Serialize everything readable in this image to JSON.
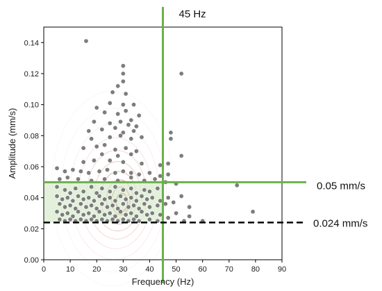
{
  "chart_data": {
    "type": "scatter",
    "title": "",
    "xlabel": "Frequency (Hz)",
    "ylabel": "Amplitude (mm/s)",
    "xlim": [
      0,
      90
    ],
    "ylim": [
      0,
      0.15
    ],
    "x_ticks": [
      "0",
      "10",
      "20",
      "30",
      "40",
      "50",
      "60",
      "70",
      "80",
      "90"
    ],
    "y_ticks": [
      "0.00",
      "0.02",
      "0.04",
      "0.06",
      "0.08",
      "0.10",
      "0.12",
      "0.14"
    ],
    "x_tick_values": [
      0,
      10,
      20,
      30,
      40,
      50,
      60,
      70,
      80,
      90
    ],
    "y_tick_values": [
      0,
      0.02,
      0.04,
      0.06,
      0.08,
      0.1,
      0.12,
      0.14
    ],
    "grid": false,
    "colors": {
      "points": "#7d7d7d",
      "point_edge": "#ffffff",
      "threshold": "#6ab04c",
      "region": "#d9ecd0",
      "lower_limit": "#000000",
      "density": "#c0392b"
    },
    "density_center": {
      "x": 29.5,
      "y": 0.037
    },
    "shaded_region": {
      "x": [
        0,
        45
      ],
      "y": [
        0.024,
        0.05
      ]
    },
    "reference_lines": [
      {
        "orientation": "vertical",
        "value": 45,
        "style": "solid",
        "label": "45 Hz"
      },
      {
        "orientation": "horizontal",
        "value": 0.05,
        "style": "solid",
        "label": "0.05 mm/s"
      },
      {
        "orientation": "horizontal",
        "value": 0.024,
        "style": "dashed",
        "label": "0.024 mm/s"
      }
    ],
    "points": [
      [
        16,
        0.141
      ],
      [
        52,
        0.12
      ],
      [
        30,
        0.12
      ],
      [
        30,
        0.125
      ],
      [
        30,
        0.115
      ],
      [
        28,
        0.112
      ],
      [
        26,
        0.108
      ],
      [
        31,
        0.107
      ],
      [
        34,
        0.1
      ],
      [
        20,
        0.098
      ],
      [
        25,
        0.101
      ],
      [
        30,
        0.1
      ],
      [
        36,
        0.093
      ],
      [
        23,
        0.095
      ],
      [
        28,
        0.094
      ],
      [
        31,
        0.096
      ],
      [
        33,
        0.09
      ],
      [
        19,
        0.089
      ],
      [
        25,
        0.088
      ],
      [
        29,
        0.089
      ],
      [
        32,
        0.087
      ],
      [
        35,
        0.086
      ],
      [
        48,
        0.082
      ],
      [
        17,
        0.083
      ],
      [
        22,
        0.084
      ],
      [
        27,
        0.085
      ],
      [
        30,
        0.082
      ],
      [
        34,
        0.083
      ],
      [
        18,
        0.078
      ],
      [
        25,
        0.079
      ],
      [
        29,
        0.08
      ],
      [
        33,
        0.078
      ],
      [
        37,
        0.079
      ],
      [
        48,
        0.078
      ],
      [
        15,
        0.072
      ],
      [
        20,
        0.073
      ],
      [
        23,
        0.074
      ],
      [
        27,
        0.071
      ],
      [
        31,
        0.072
      ],
      [
        35,
        0.07
      ],
      [
        22,
        0.068
      ],
      [
        28,
        0.067
      ],
      [
        33,
        0.068
      ],
      [
        52,
        0.067
      ],
      [
        15,
        0.063
      ],
      [
        19,
        0.064
      ],
      [
        25,
        0.064
      ],
      [
        30,
        0.063
      ],
      [
        37,
        0.062
      ],
      [
        44,
        0.061
      ],
      [
        47,
        0.062
      ],
      [
        5,
        0.059
      ],
      [
        8,
        0.057
      ],
      [
        11,
        0.058
      ],
      [
        14,
        0.057
      ],
      [
        17,
        0.056
      ],
      [
        21,
        0.057
      ],
      [
        24,
        0.058
      ],
      [
        27,
        0.056
      ],
      [
        30,
        0.057
      ],
      [
        33,
        0.056
      ],
      [
        36,
        0.055
      ],
      [
        40,
        0.056
      ],
      [
        44,
        0.054
      ],
      [
        47,
        0.055
      ],
      [
        6,
        0.052
      ],
      [
        9,
        0.053
      ],
      [
        13,
        0.052
      ],
      [
        18,
        0.051
      ],
      [
        23,
        0.052
      ],
      [
        28,
        0.051
      ],
      [
        33,
        0.053
      ],
      [
        38,
        0.051
      ],
      [
        42,
        0.052
      ],
      [
        46,
        0.05
      ],
      [
        50,
        0.049
      ],
      [
        73,
        0.048
      ],
      [
        5,
        0.047
      ],
      [
        8,
        0.045
      ],
      [
        10,
        0.043
      ],
      [
        12,
        0.046
      ],
      [
        15,
        0.044
      ],
      [
        18,
        0.047
      ],
      [
        20,
        0.043
      ],
      [
        22,
        0.046
      ],
      [
        25,
        0.044
      ],
      [
        27,
        0.047
      ],
      [
        30,
        0.045
      ],
      [
        33,
        0.046
      ],
      [
        35,
        0.043
      ],
      [
        38,
        0.045
      ],
      [
        40,
        0.044
      ],
      [
        43,
        0.046
      ],
      [
        5,
        0.041
      ],
      [
        7,
        0.039
      ],
      [
        9,
        0.04
      ],
      [
        11,
        0.038
      ],
      [
        13,
        0.041
      ],
      [
        15,
        0.039
      ],
      [
        17,
        0.04
      ],
      [
        19,
        0.038
      ],
      [
        21,
        0.041
      ],
      [
        23,
        0.039
      ],
      [
        25,
        0.04
      ],
      [
        27,
        0.038
      ],
      [
        29,
        0.041
      ],
      [
        31,
        0.039
      ],
      [
        33,
        0.04
      ],
      [
        35,
        0.038
      ],
      [
        37,
        0.041
      ],
      [
        39,
        0.039
      ],
      [
        41,
        0.04
      ],
      [
        44,
        0.038
      ],
      [
        47,
        0.04
      ],
      [
        52,
        0.041
      ],
      [
        6,
        0.036
      ],
      [
        8,
        0.034
      ],
      [
        10,
        0.035
      ],
      [
        12,
        0.033
      ],
      [
        14,
        0.036
      ],
      [
        16,
        0.034
      ],
      [
        18,
        0.035
      ],
      [
        20,
        0.033
      ],
      [
        22,
        0.036
      ],
      [
        24,
        0.034
      ],
      [
        26,
        0.035
      ],
      [
        28,
        0.033
      ],
      [
        30,
        0.036
      ],
      [
        32,
        0.034
      ],
      [
        34,
        0.035
      ],
      [
        36,
        0.033
      ],
      [
        38,
        0.036
      ],
      [
        40,
        0.034
      ],
      [
        43,
        0.035
      ],
      [
        46,
        0.036
      ],
      [
        49,
        0.037
      ],
      [
        55,
        0.034
      ],
      [
        5,
        0.031
      ],
      [
        7,
        0.029
      ],
      [
        9,
        0.03
      ],
      [
        11,
        0.028
      ],
      [
        13,
        0.031
      ],
      [
        15,
        0.029
      ],
      [
        17,
        0.03
      ],
      [
        19,
        0.028
      ],
      [
        21,
        0.031
      ],
      [
        23,
        0.029
      ],
      [
        25,
        0.03
      ],
      [
        27,
        0.028
      ],
      [
        29,
        0.031
      ],
      [
        31,
        0.029
      ],
      [
        33,
        0.03
      ],
      [
        35,
        0.028
      ],
      [
        37,
        0.031
      ],
      [
        39,
        0.029
      ],
      [
        41,
        0.03
      ],
      [
        44,
        0.029
      ],
      [
        47,
        0.027
      ],
      [
        50,
        0.03
      ],
      [
        55,
        0.028
      ],
      [
        79,
        0.031
      ],
      [
        6,
        0.026
      ],
      [
        8,
        0.025
      ],
      [
        10,
        0.026
      ],
      [
        12,
        0.025
      ],
      [
        14,
        0.026
      ],
      [
        16,
        0.025
      ],
      [
        18,
        0.026
      ],
      [
        20,
        0.025
      ],
      [
        22,
        0.026
      ],
      [
        24,
        0.025
      ],
      [
        26,
        0.026
      ],
      [
        28,
        0.025
      ],
      [
        30,
        0.026
      ],
      [
        32,
        0.025
      ],
      [
        34,
        0.026
      ],
      [
        36,
        0.025
      ],
      [
        40,
        0.026
      ],
      [
        43,
        0.025
      ],
      [
        53,
        0.025
      ],
      [
        60,
        0.025
      ]
    ]
  }
}
